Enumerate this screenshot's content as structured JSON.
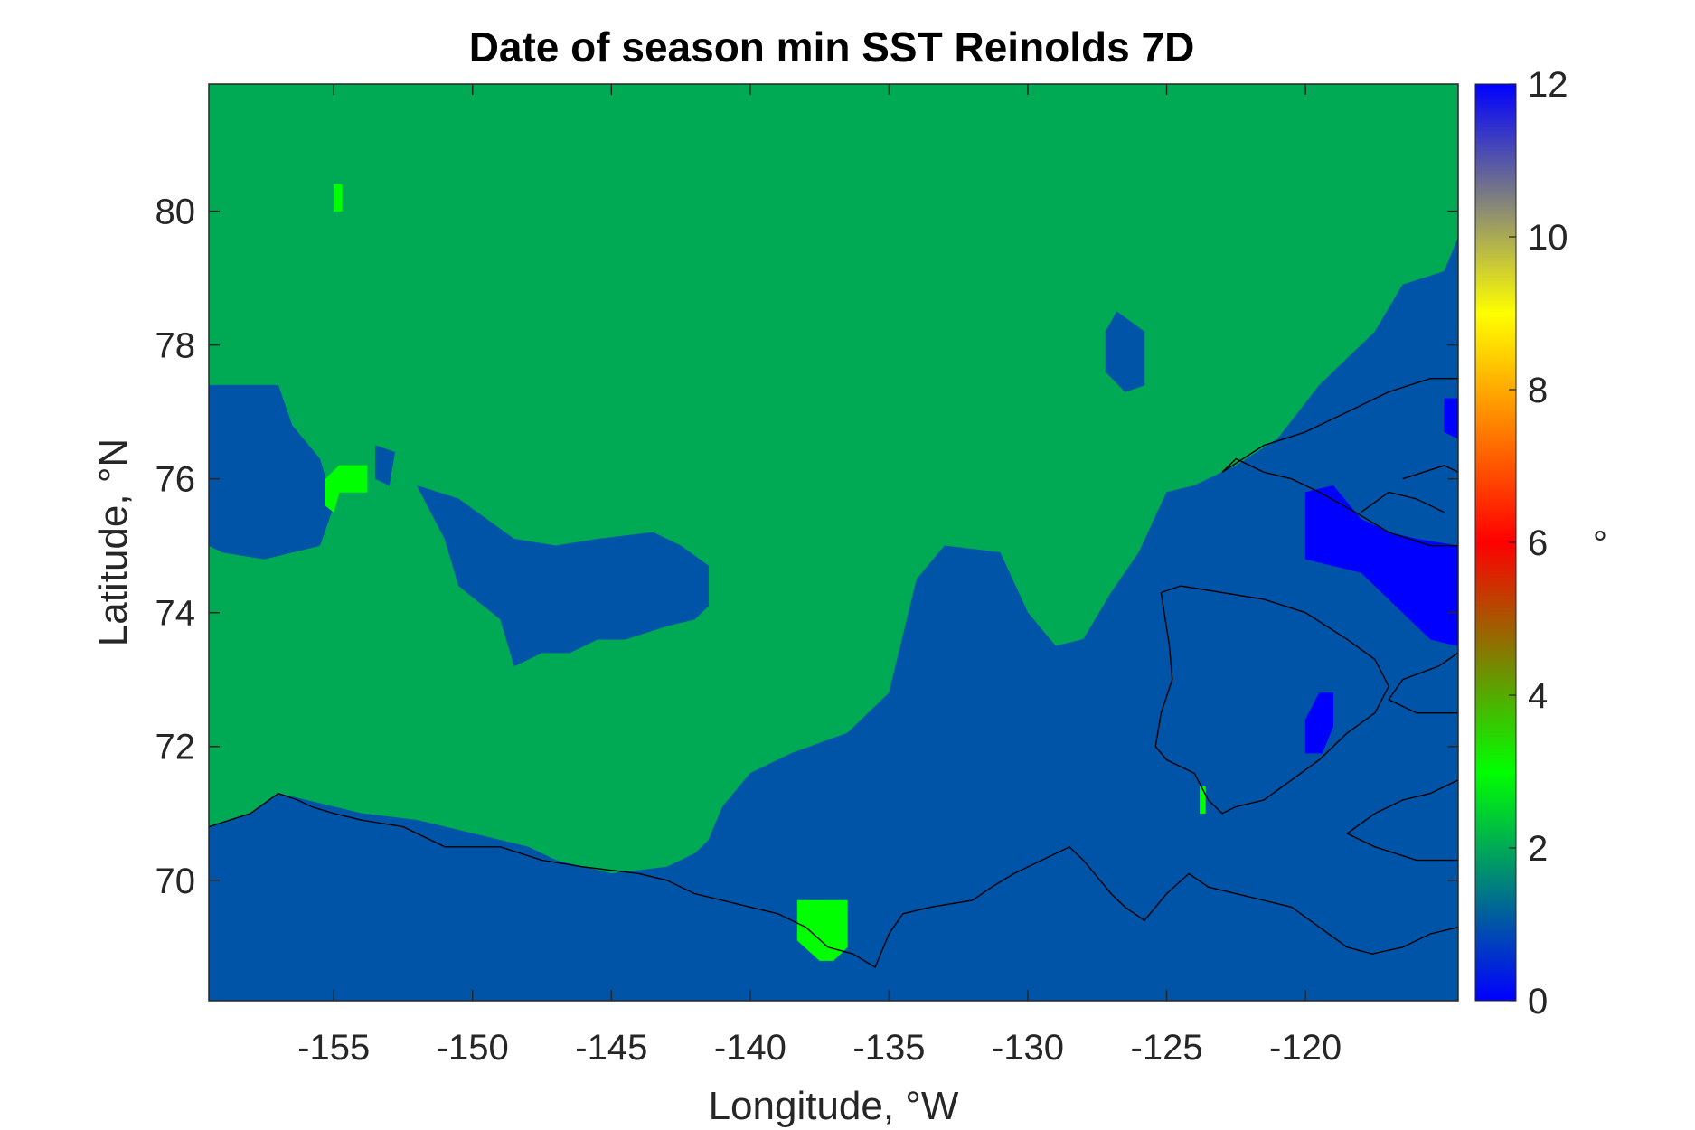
{
  "chart_data": {
    "type": "heatmap",
    "title": "Date of season min SST Reinolds 7D",
    "xlabel": "Longitude, °W",
    "ylabel": "Latitude, °N",
    "colorbar_label": "°",
    "xlim": [
      -159.5,
      -114.5
    ],
    "ylim": [
      68.2,
      81.9
    ],
    "xticks": [
      -155,
      -150,
      -145,
      -140,
      -135,
      -130,
      -125,
      -120
    ],
    "yticks": [
      70,
      72,
      74,
      76,
      78,
      80
    ],
    "colorbar": {
      "range": [
        0,
        12
      ],
      "ticks": [
        0,
        2,
        4,
        6,
        8,
        10,
        12
      ],
      "colormap_stops": [
        {
          "value": 0,
          "color": "#0000ff"
        },
        {
          "value": 1,
          "color": "#0054a8"
        },
        {
          "value": 2,
          "color": "#00aa55"
        },
        {
          "value": 3,
          "color": "#00ff00"
        },
        {
          "value": 4,
          "color": "#55aa00"
        },
        {
          "value": 5,
          "color": "#aa5500"
        },
        {
          "value": 6,
          "color": "#ff0000"
        },
        {
          "value": 7,
          "color": "#ff5500"
        },
        {
          "value": 8,
          "color": "#ffaa00"
        },
        {
          "value": 9,
          "color": "#ffff00"
        },
        {
          "value": 10,
          "color": "#aaaa55"
        },
        {
          "value": 11,
          "color": "#5555aa"
        },
        {
          "value": 12,
          "color": "#0000ff"
        }
      ]
    },
    "background_value": 2,
    "regions": [
      {
        "value": 1,
        "polygon": [
          [
            -159.5,
            68.2
          ],
          [
            -114.5,
            68.2
          ],
          [
            -114.5,
            79.6
          ],
          [
            -115,
            79.1
          ],
          [
            -116.5,
            78.9
          ],
          [
            -117.5,
            78.2
          ],
          [
            -119.5,
            77.4
          ],
          [
            -121,
            76.6
          ],
          [
            -122.5,
            76.2
          ],
          [
            -124,
            75.9
          ],
          [
            -125,
            75.8
          ],
          [
            -126,
            74.9
          ],
          [
            -127,
            74.3
          ],
          [
            -128,
            73.6
          ],
          [
            -129,
            73.5
          ],
          [
            -130,
            74.0
          ],
          [
            -131,
            74.9
          ],
          [
            -133,
            75.0
          ],
          [
            -134,
            74.5
          ],
          [
            -135,
            72.8
          ],
          [
            -136.5,
            72.2
          ],
          [
            -138.5,
            71.9
          ],
          [
            -140,
            71.6
          ],
          [
            -141,
            71.1
          ],
          [
            -141.5,
            70.6
          ],
          [
            -142,
            70.4
          ],
          [
            -143,
            70.2
          ],
          [
            -145,
            70.1
          ],
          [
            -147,
            70.3
          ],
          [
            -148,
            70.5
          ],
          [
            -150,
            70.7
          ],
          [
            -152,
            70.9
          ],
          [
            -154,
            71.0
          ],
          [
            -156,
            71.2
          ],
          [
            -157,
            71.3
          ],
          [
            -158,
            71.0
          ],
          [
            -159.5,
            70.8
          ]
        ]
      },
      {
        "value": 1,
        "polygon": [
          [
            -159.5,
            77.4
          ],
          [
            -157,
            77.4
          ],
          [
            -156.5,
            76.8
          ],
          [
            -155.5,
            76.3
          ],
          [
            -155,
            75.6
          ],
          [
            -155.5,
            75.0
          ],
          [
            -157.5,
            74.8
          ],
          [
            -159,
            74.9
          ],
          [
            -159.5,
            75.0
          ]
        ]
      },
      {
        "value": 1,
        "polygon": [
          [
            -152,
            75.9
          ],
          [
            -151,
            75.1
          ],
          [
            -150.5,
            74.4
          ],
          [
            -149,
            73.9
          ],
          [
            -148.5,
            73.2
          ],
          [
            -147.5,
            73.4
          ],
          [
            -146.5,
            73.4
          ],
          [
            -145.5,
            73.6
          ],
          [
            -144.5,
            73.6
          ],
          [
            -143,
            73.8
          ],
          [
            -142,
            73.9
          ],
          [
            -141.5,
            74.1
          ],
          [
            -141.5,
            74.7
          ],
          [
            -142.5,
            75.0
          ],
          [
            -143.5,
            75.2
          ],
          [
            -145.5,
            75.1
          ],
          [
            -147,
            75.0
          ],
          [
            -148.5,
            75.1
          ],
          [
            -149.5,
            75.4
          ],
          [
            -150.5,
            75.7
          ]
        ]
      },
      {
        "value": 1,
        "polygon": [
          [
            -126.8,
            78.5
          ],
          [
            -125.8,
            78.2
          ],
          [
            -125.8,
            77.4
          ],
          [
            -126.5,
            77.3
          ],
          [
            -127.2,
            77.6
          ],
          [
            -127.2,
            78.2
          ]
        ]
      },
      {
        "value": 1,
        "polygon": [
          [
            -153.5,
            76.5
          ],
          [
            -152.8,
            76.4
          ],
          [
            -153,
            75.9
          ],
          [
            -153.5,
            76.0
          ]
        ]
      },
      {
        "value": 0,
        "polygon": [
          [
            -120,
            75.8
          ],
          [
            -119,
            75.9
          ],
          [
            -118,
            75.4
          ],
          [
            -117,
            75.2
          ],
          [
            -116,
            75.1
          ],
          [
            -114.5,
            75.0
          ],
          [
            -114.5,
            73.5
          ],
          [
            -115.5,
            73.6
          ],
          [
            -116.5,
            74.0
          ],
          [
            -118,
            74.6
          ],
          [
            -120,
            74.8
          ]
        ]
      },
      {
        "value": 0,
        "polygon": [
          [
            -115,
            77.2
          ],
          [
            -114.5,
            77.2
          ],
          [
            -114.5,
            76.6
          ],
          [
            -115,
            76.7
          ]
        ]
      },
      {
        "value": 0,
        "polygon": [
          [
            -119.5,
            72.8
          ],
          [
            -119,
            72.8
          ],
          [
            -119,
            72.3
          ],
          [
            -119.4,
            71.9
          ],
          [
            -120,
            71.9
          ],
          [
            -120,
            72.4
          ]
        ]
      },
      {
        "value": 3,
        "polygon": [
          [
            -155,
            80.4
          ],
          [
            -154.7,
            80.4
          ],
          [
            -154.7,
            80.0
          ],
          [
            -155,
            80.0
          ]
        ]
      },
      {
        "value": 3,
        "polygon": [
          [
            -154.8,
            76.2
          ],
          [
            -153.8,
            76.2
          ],
          [
            -153.8,
            75.8
          ],
          [
            -154.8,
            75.8
          ],
          [
            -155,
            75.5
          ],
          [
            -155.3,
            75.6
          ],
          [
            -155.3,
            76.0
          ]
        ]
      },
      {
        "value": 3,
        "polygon": [
          [
            -138.3,
            69.7
          ],
          [
            -136.5,
            69.7
          ],
          [
            -136.5,
            69.0
          ],
          [
            -137,
            68.8
          ],
          [
            -137.5,
            68.8
          ],
          [
            -138.3,
            69.1
          ]
        ]
      },
      {
        "value": 3,
        "polygon": [
          [
            -123.8,
            71.4
          ],
          [
            -123.6,
            71.4
          ],
          [
            -123.6,
            71.0
          ],
          [
            -123.8,
            71.0
          ]
        ]
      }
    ],
    "coastlines": [
      [
        [
          -159.5,
          70.8
        ],
        [
          -158,
          71.0
        ],
        [
          -157,
          71.3
        ],
        [
          -156.3,
          71.2
        ],
        [
          -155.8,
          71.1
        ],
        [
          -155,
          71.0
        ],
        [
          -154,
          70.9
        ],
        [
          -152.5,
          70.8
        ],
        [
          -151,
          70.5
        ],
        [
          -149,
          70.5
        ],
        [
          -147.5,
          70.3
        ],
        [
          -146,
          70.2
        ],
        [
          -144,
          70.1
        ],
        [
          -143,
          70.0
        ],
        [
          -142,
          69.8
        ],
        [
          -141,
          69.7
        ],
        [
          -140,
          69.6
        ],
        [
          -139,
          69.5
        ],
        [
          -138,
          69.3
        ],
        [
          -137.2,
          69.0
        ],
        [
          -136.3,
          68.9
        ],
        [
          -135.5,
          68.7
        ],
        [
          -135,
          69.2
        ],
        [
          -134.5,
          69.5
        ],
        [
          -133.5,
          69.6
        ],
        [
          -132,
          69.7
        ],
        [
          -131.3,
          69.9
        ],
        [
          -130.5,
          70.1
        ],
        [
          -129.5,
          70.3
        ],
        [
          -128.5,
          70.5
        ],
        [
          -128,
          70.3
        ],
        [
          -127.6,
          70.1
        ],
        [
          -127,
          69.8
        ],
        [
          -126.5,
          69.6
        ],
        [
          -125.8,
          69.4
        ],
        [
          -125,
          69.8
        ],
        [
          -124.2,
          70.1
        ],
        [
          -123.5,
          69.9
        ],
        [
          -122.5,
          69.8
        ],
        [
          -121.5,
          69.7
        ],
        [
          -120.5,
          69.6
        ],
        [
          -119.5,
          69.3
        ],
        [
          -118.5,
          69.0
        ],
        [
          -117.6,
          68.9
        ],
        [
          -116.5,
          69.0
        ],
        [
          -115.5,
          69.2
        ],
        [
          -114.5,
          69.3
        ]
      ],
      [
        [
          -125.2,
          74.3
        ],
        [
          -124.5,
          74.4
        ],
        [
          -123,
          74.3
        ],
        [
          -121.5,
          74.2
        ],
        [
          -120,
          74.0
        ],
        [
          -118.5,
          73.6
        ],
        [
          -117.5,
          73.3
        ],
        [
          -117,
          72.9
        ],
        [
          -117.5,
          72.5
        ],
        [
          -118.5,
          72.2
        ],
        [
          -119.5,
          71.8
        ],
        [
          -120.5,
          71.5
        ],
        [
          -121.5,
          71.2
        ],
        [
          -122.5,
          71.1
        ],
        [
          -123,
          71.0
        ],
        [
          -123.5,
          71.2
        ],
        [
          -124,
          71.6
        ],
        [
          -125,
          71.8
        ],
        [
          -125.4,
          72.0
        ],
        [
          -125.2,
          72.5
        ],
        [
          -124.8,
          73.0
        ],
        [
          -124.9,
          73.5
        ],
        [
          -125.2,
          74.3
        ]
      ],
      [
        [
          -114.5,
          70.3
        ],
        [
          -116,
          70.3
        ],
        [
          -117.5,
          70.5
        ],
        [
          -118.5,
          70.7
        ],
        [
          -117.5,
          71.0
        ],
        [
          -116.5,
          71.2
        ],
        [
          -115.5,
          71.3
        ],
        [
          -114.5,
          71.5
        ]
      ],
      [
        [
          -114.5,
          72.5
        ],
        [
          -116,
          72.5
        ],
        [
          -117,
          72.7
        ],
        [
          -116.5,
          73.0
        ],
        [
          -115.2,
          73.2
        ],
        [
          -114.5,
          73.4
        ]
      ],
      [
        [
          -114.5,
          75.0
        ],
        [
          -115.5,
          75.0
        ],
        [
          -117,
          75.2
        ],
        [
          -118.2,
          75.5
        ],
        [
          -119.5,
          75.8
        ],
        [
          -120.5,
          76.0
        ],
        [
          -121.5,
          76.1
        ],
        [
          -122.5,
          76.3
        ],
        [
          -123,
          76.1
        ],
        [
          -121.5,
          76.5
        ],
        [
          -120,
          76.7
        ],
        [
          -118.5,
          77.0
        ],
        [
          -117,
          77.3
        ],
        [
          -115.5,
          77.5
        ],
        [
          -114.5,
          77.5
        ]
      ],
      [
        [
          -116.5,
          76.0
        ],
        [
          -115,
          76.2
        ],
        [
          -114.5,
          76.1
        ]
      ],
      [
        [
          -118,
          75.5
        ],
        [
          -117,
          75.8
        ],
        [
          -116,
          75.7
        ],
        [
          -115,
          75.5
        ]
      ]
    ]
  }
}
